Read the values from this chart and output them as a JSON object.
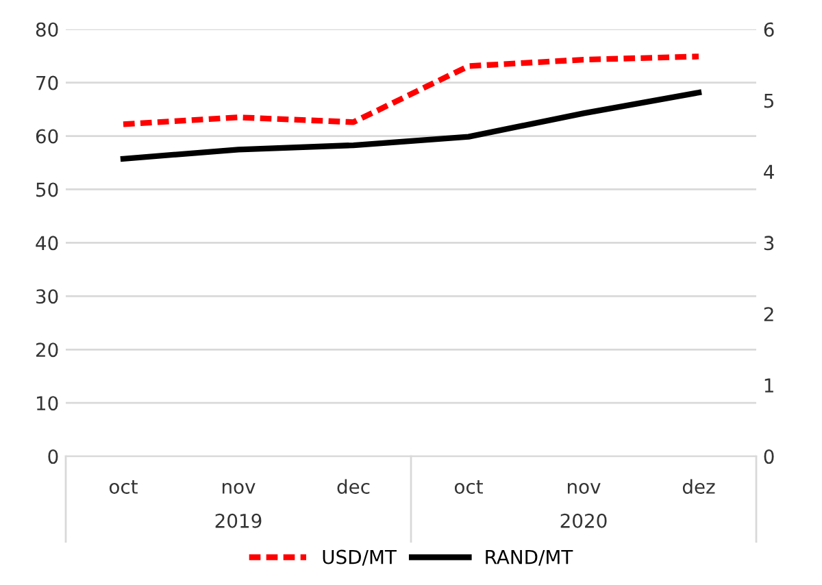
{
  "chart_data": {
    "type": "line",
    "categories": [
      "oct",
      "nov",
      "dec",
      "oct",
      "nov",
      "dez"
    ],
    "series": [
      {
        "name": "USD/MT",
        "color": "#ff0000",
        "line_style": "dashed",
        "values": [
          62.2,
          63.5,
          62.6,
          73.1,
          74.3,
          74.9
        ]
      },
      {
        "name": "RAND/MT",
        "color": "#000000",
        "line_style": "solid",
        "axis": "y2",
        "values": [
          4.18,
          4.31,
          4.37,
          4.49,
          4.82,
          5.11
        ]
      }
    ],
    "ylim": [
      0,
      80
    ],
    "yticks": [
      0,
      10,
      20,
      30,
      40,
      50,
      60,
      70,
      80
    ],
    "y2lim": [
      0,
      6
    ],
    "y2ticks": [
      0,
      1,
      2,
      3,
      4,
      5,
      6
    ],
    "annotations": [
      "2019",
      "2020"
    ],
    "grid": "y",
    "legend": "bottom",
    "marker": "none"
  }
}
